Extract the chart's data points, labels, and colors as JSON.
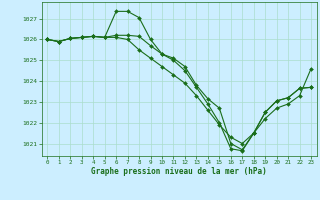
{
  "background_color": "#cceeff",
  "grid_color": "#aaddcc",
  "line_color": "#1a6e1a",
  "marker_color": "#1a6e1a",
  "title": "Graphe pression niveau de la mer (hPa)",
  "xlim": [
    -0.5,
    23.5
  ],
  "ylim": [
    1020.4,
    1027.8
  ],
  "yticks": [
    1021,
    1022,
    1023,
    1024,
    1025,
    1026,
    1027
  ],
  "xticks": [
    0,
    1,
    2,
    3,
    4,
    5,
    6,
    7,
    8,
    9,
    10,
    11,
    12,
    13,
    14,
    15,
    16,
    17,
    18,
    19,
    20,
    21,
    22,
    23
  ],
  "series": [
    [
      1026.0,
      1025.9,
      1026.05,
      1026.1,
      1026.15,
      1026.1,
      1027.35,
      1027.35,
      1027.05,
      1026.0,
      1025.3,
      1025.1,
      1024.7,
      1023.8,
      1023.15,
      1022.7,
      1021.0,
      1020.7,
      1021.5,
      1022.5,
      1023.05,
      1023.2,
      1023.65,
      1023.7
    ],
    [
      1026.0,
      1025.9,
      1026.05,
      1026.1,
      1026.15,
      1026.1,
      1026.2,
      1026.2,
      1026.15,
      1025.7,
      1025.3,
      1025.0,
      1024.5,
      1023.7,
      1022.9,
      1022.0,
      1020.75,
      1020.65,
      1021.5,
      1022.5,
      1023.05,
      1023.2,
      1023.65,
      1023.7
    ],
    [
      1026.0,
      1025.9,
      1026.05,
      1026.1,
      1026.15,
      1026.1,
      1026.1,
      1026.0,
      1025.5,
      1025.1,
      1024.7,
      1024.3,
      1023.9,
      1023.3,
      1022.6,
      1021.9,
      1021.3,
      1021.0,
      1021.5,
      1022.2,
      1022.7,
      1022.9,
      1023.3,
      1024.6
    ]
  ]
}
